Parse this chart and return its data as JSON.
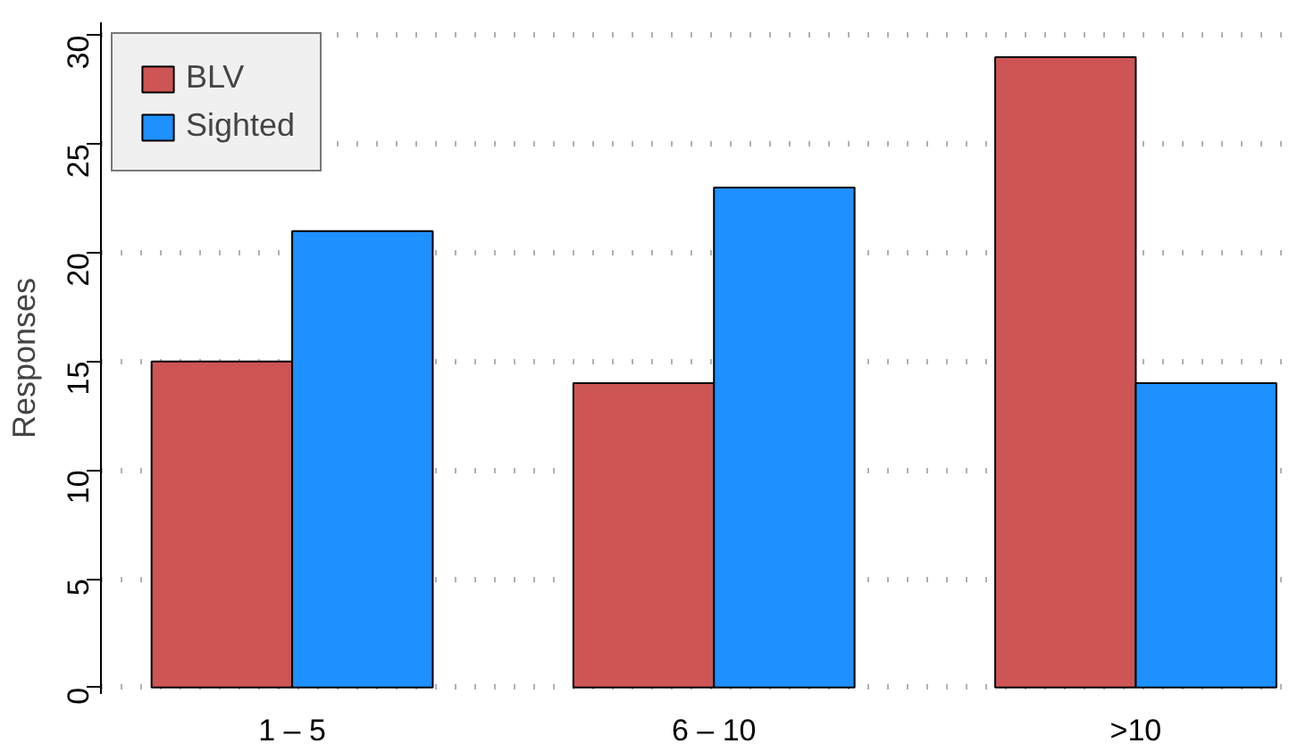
{
  "chart_data": {
    "type": "bar",
    "ylabel": "Responses",
    "categories": [
      "1 – 5",
      "6 – 10",
      ">10"
    ],
    "series": [
      {
        "name": "BLV",
        "color": "#cd5555",
        "values": [
          15,
          14,
          29
        ]
      },
      {
        "name": "Sighted",
        "color": "#1e90ff",
        "values": [
          21,
          23,
          14
        ]
      }
    ],
    "ylim": [
      0,
      30
    ],
    "yticks": [
      0,
      5,
      10,
      15,
      20,
      25,
      30
    ],
    "grid": "y",
    "legend": "top left"
  }
}
